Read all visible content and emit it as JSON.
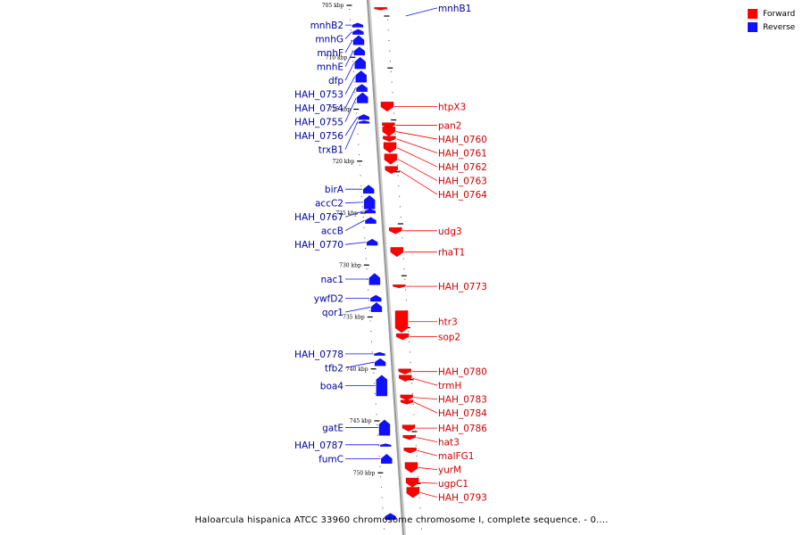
{
  "caption": "Haloarcula hispanica ATCC 33960 chromosome chromosome I, complete sequence. - 0....",
  "legend": [
    {
      "label": "Forward",
      "color": "#ff0000"
    },
    {
      "label": "Reverse",
      "color": "#1010ff"
    }
  ],
  "colors": {
    "forward": "#ff0000",
    "forward_text": "#cc0000",
    "reverse": "#1010ff",
    "reverse_text": "#000099",
    "backbone": "#999999"
  },
  "ticks": [
    {
      "label": "705 kbp",
      "kbp": 705
    },
    {
      "label": "710 kbp",
      "kbp": 710
    },
    {
      "label": "715 kbp",
      "kbp": 715
    },
    {
      "label": "720 kbp",
      "kbp": 720
    },
    {
      "label": "725 kbp",
      "kbp": 725
    },
    {
      "label": "730 kbp",
      "kbp": 730
    },
    {
      "label": "735 kbp",
      "kbp": 735
    },
    {
      "label": "740 kbp",
      "kbp": 740
    },
    {
      "label": "745 kbp",
      "kbp": 745
    },
    {
      "label": "750 kbp",
      "kbp": 750
    }
  ],
  "reverse_genes": [
    {
      "name": "mnhB2",
      "start": 706.7,
      "end": 707.1
    },
    {
      "name": "mnhG",
      "start": 707.3,
      "end": 707.8
    },
    {
      "name": "mnhF",
      "start": 707.9,
      "end": 708.8
    },
    {
      "name": "mnhE",
      "start": 709.0,
      "end": 709.8
    },
    {
      "name": "dfp",
      "start": 710.0,
      "end": 711.1
    },
    {
      "name": "HAH_0753",
      "start": 711.3,
      "end": 712.4
    },
    {
      "name": "HAH_0754",
      "start": 712.6,
      "end": 713.3
    },
    {
      "name": "HAH_0755",
      "start": 713.4,
      "end": 714.4
    },
    {
      "name": "HAH_0756",
      "start": 715.5,
      "end": 716.0
    },
    {
      "name": "trxB1",
      "start": 716.1,
      "end": 716.2
    },
    {
      "name": "birA",
      "start": 722.3,
      "end": 723.1
    },
    {
      "name": "accC2",
      "start": 723.3,
      "end": 724.6
    },
    {
      "name": "HAH_0767",
      "start": 724.6,
      "end": 725.0
    },
    {
      "name": "accB",
      "start": 725.4,
      "end": 726.0
    },
    {
      "name": "HAH_0770",
      "start": 727.5,
      "end": 728.1
    },
    {
      "name": "nac1",
      "start": 730.8,
      "end": 731.9
    },
    {
      "name": "ywfD2",
      "start": 732.9,
      "end": 733.5
    },
    {
      "name": "qor1",
      "start": 733.6,
      "end": 734.5
    },
    {
      "name": "HAH_0778",
      "start": 738.4,
      "end": 738.7
    },
    {
      "name": "tfb2",
      "start": 739.0,
      "end": 739.7
    },
    {
      "name": "boa4",
      "start": 740.6,
      "end": 742.6
    },
    {
      "name": "gatE",
      "start": 744.9,
      "end": 746.4
    },
    {
      "name": "HAH_0787",
      "start": 747.2,
      "end": 747.4
    },
    {
      "name": "fumC",
      "start": 748.2,
      "end": 749.1
    },
    {
      "name": "",
      "start": 753.9,
      "end": 754.5
    }
  ],
  "forward_genes": [
    {
      "name": "mnhB1",
      "start": 705.2,
      "end": 705.3
    },
    {
      "name": "htpX3",
      "start": 714.3,
      "end": 715.2
    },
    {
      "name": "pan2",
      "start": 716.3,
      "end": 716.8
    },
    {
      "name": "HAH_0760",
      "start": 716.7,
      "end": 717.6
    },
    {
      "name": "HAH_0761",
      "start": 717.6,
      "end": 718.1
    },
    {
      "name": "HAH_0762",
      "start": 718.2,
      "end": 719.2
    },
    {
      "name": "HAH_0763",
      "start": 719.3,
      "end": 720.3
    },
    {
      "name": "HAH_0764",
      "start": 720.5,
      "end": 721.2
    },
    {
      "name": "udg3",
      "start": 726.4,
      "end": 727.0
    },
    {
      "name": "rhaT1",
      "start": 728.3,
      "end": 729.2
    },
    {
      "name": "HAH_0773",
      "start": 731.9,
      "end": 732.2
    },
    {
      "name": "htr3",
      "start": 734.4,
      "end": 736.5
    },
    {
      "name": "sop2",
      "start": 736.6,
      "end": 737.2
    },
    {
      "name": "HAH_0780",
      "start": 740.0,
      "end": 740.5
    },
    {
      "name": "trmH",
      "start": 740.6,
      "end": 741.2
    },
    {
      "name": "HAH_0783",
      "start": 742.5,
      "end": 743.0
    },
    {
      "name": "HAH_0784",
      "start": 743.0,
      "end": 743.4
    },
    {
      "name": "HAH_0786",
      "start": 745.4,
      "end": 746.0
    },
    {
      "name": "hat3",
      "start": 746.4,
      "end": 746.8
    },
    {
      "name": "malFG1",
      "start": 747.6,
      "end": 748.1
    },
    {
      "name": "yurM",
      "start": 749.0,
      "end": 750.0
    },
    {
      "name": "ugpC1",
      "start": 750.5,
      "end": 751.4
    },
    {
      "name": "HAH_0793",
      "start": 751.4,
      "end": 752.4
    }
  ]
}
